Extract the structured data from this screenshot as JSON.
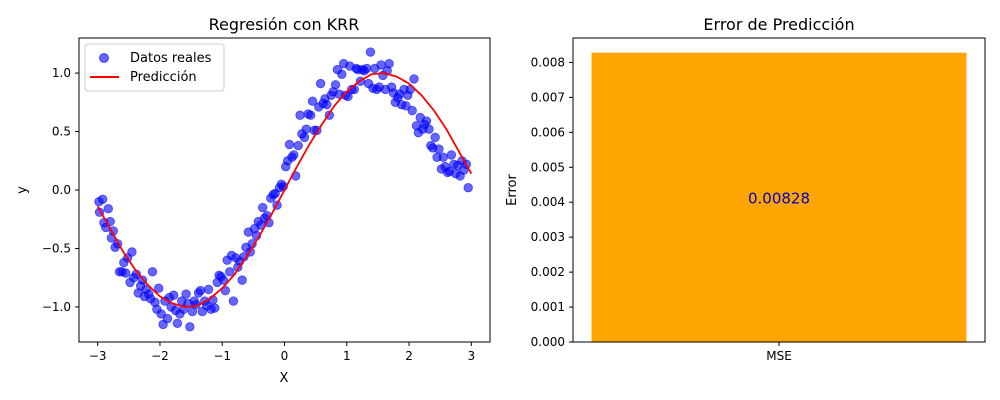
{
  "chart_data": [
    {
      "type": "scatter",
      "title": "Regresión con KRR",
      "xlabel": "X",
      "ylabel": "y",
      "xlim": [
        -3.3,
        3.3
      ],
      "ylim": [
        -1.3,
        1.3
      ],
      "xticks": [
        -3,
        -2,
        -1,
        0,
        1,
        2,
        3
      ],
      "xtick_labels": [
        "−3",
        "−2",
        "−1",
        "0",
        "1",
        "2",
        "3"
      ],
      "yticks": [
        -1.0,
        -0.5,
        0.0,
        0.5,
        1.0
      ],
      "ytick_labels": [
        "−1.0",
        "−0.5",
        "0.0",
        "0.5",
        "1.0"
      ],
      "legend_position": "top-left",
      "grid": false,
      "series": [
        {
          "name": "Datos reales",
          "kind": "scatter",
          "color": "#0000ff",
          "alpha": 0.6,
          "points": [
            [
              -2.98,
              -0.1
            ],
            [
              -2.97,
              -0.19
            ],
            [
              -2.92,
              -0.08
            ],
            [
              -2.9,
              -0.28
            ],
            [
              -2.87,
              -0.32
            ],
            [
              -2.83,
              -0.16
            ],
            [
              -2.8,
              -0.27
            ],
            [
              -2.78,
              -0.41
            ],
            [
              -2.75,
              -0.35
            ],
            [
              -2.72,
              -0.49
            ],
            [
              -2.68,
              -0.46
            ],
            [
              -2.65,
              -0.7
            ],
            [
              -2.61,
              -0.7
            ],
            [
              -2.58,
              -0.62
            ],
            [
              -2.55,
              -0.71
            ],
            [
              -2.52,
              -0.58
            ],
            [
              -2.48,
              -0.79
            ],
            [
              -2.45,
              -0.53
            ],
            [
              -2.42,
              -0.75
            ],
            [
              -2.38,
              -0.72
            ],
            [
              -2.35,
              -0.88
            ],
            [
              -2.31,
              -0.82
            ],
            [
              -2.28,
              -0.77
            ],
            [
              -2.25,
              -0.91
            ],
            [
              -2.22,
              -0.85
            ],
            [
              -2.18,
              -0.89
            ],
            [
              -2.15,
              -0.93
            ],
            [
              -2.12,
              -0.7
            ],
            [
              -2.08,
              -0.96
            ],
            [
              -2.05,
              -1.02
            ],
            [
              -2.02,
              -0.84
            ],
            [
              -1.98,
              -1.06
            ],
            [
              -1.95,
              -1.15
            ],
            [
              -1.92,
              -0.95
            ],
            [
              -1.88,
              -1.1
            ],
            [
              -1.85,
              -0.92
            ],
            [
              -1.82,
              -1.0
            ],
            [
              -1.78,
              -0.9
            ],
            [
              -1.75,
              -1.03
            ],
            [
              -1.72,
              -1.14
            ],
            [
              -1.68,
              -1.06
            ],
            [
              -1.65,
              -0.95
            ],
            [
              -1.62,
              -1.02
            ],
            [
              -1.58,
              -0.89
            ],
            [
              -1.55,
              -0.97
            ],
            [
              -1.52,
              -1.17
            ],
            [
              -1.48,
              -1.04
            ],
            [
              -1.45,
              -0.95
            ],
            [
              -1.42,
              -0.98
            ],
            [
              -1.38,
              -0.88
            ],
            [
              -1.35,
              -0.86
            ],
            [
              -1.32,
              -1.04
            ],
            [
              -1.28,
              -0.95
            ],
            [
              -1.25,
              -0.99
            ],
            [
              -1.22,
              -0.85
            ],
            [
              -1.18,
              -1.02
            ],
            [
              -1.15,
              -0.94
            ],
            [
              -1.12,
              -1.01
            ],
            [
              -1.08,
              -0.79
            ],
            [
              -1.05,
              -0.73
            ],
            [
              -1.02,
              -0.74
            ],
            [
              -0.98,
              -0.77
            ],
            [
              -0.95,
              -0.86
            ],
            [
              -0.92,
              -0.6
            ],
            [
              -0.88,
              -0.7
            ],
            [
              -0.85,
              -0.56
            ],
            [
              -0.82,
              -0.95
            ],
            [
              -0.78,
              -0.58
            ],
            [
              -0.75,
              -0.66
            ],
            [
              -0.72,
              -0.61
            ],
            [
              -0.68,
              -0.77
            ],
            [
              -0.65,
              -0.57
            ],
            [
              -0.62,
              -0.49
            ],
            [
              -0.58,
              -0.36
            ],
            [
              -0.55,
              -0.53
            ],
            [
              -0.52,
              -0.46
            ],
            [
              -0.48,
              -0.33
            ],
            [
              -0.45,
              -0.39
            ],
            [
              -0.42,
              -0.27
            ],
            [
              -0.38,
              -0.3
            ],
            [
              -0.35,
              -0.15
            ],
            [
              -0.32,
              -0.24
            ],
            [
              -0.28,
              -0.22
            ],
            [
              -0.25,
              -0.28
            ],
            [
              -0.22,
              -0.07
            ],
            [
              -0.18,
              -0.04
            ],
            [
              -0.15,
              -0.03
            ],
            [
              -0.12,
              -0.13
            ],
            [
              -0.08,
              0.02
            ],
            [
              -0.05,
              0.05
            ],
            [
              -0.02,
              0.03
            ],
            [
              0.02,
              0.2
            ],
            [
              0.05,
              0.25
            ],
            [
              0.08,
              0.39
            ],
            [
              0.12,
              0.28
            ],
            [
              0.15,
              0.3
            ],
            [
              0.18,
              0.12
            ],
            [
              0.22,
              0.38
            ],
            [
              0.25,
              0.64
            ],
            [
              0.28,
              0.48
            ],
            [
              0.32,
              0.45
            ],
            [
              0.35,
              0.52
            ],
            [
              0.38,
              0.65
            ],
            [
              0.42,
              0.64
            ],
            [
              0.45,
              0.76
            ],
            [
              0.48,
              0.51
            ],
            [
              0.52,
              0.51
            ],
            [
              0.55,
              0.71
            ],
            [
              0.58,
              0.91
            ],
            [
              0.62,
              0.74
            ],
            [
              0.65,
              0.78
            ],
            [
              0.68,
              0.73
            ],
            [
              0.72,
              0.64
            ],
            [
              0.75,
              0.81
            ],
            [
              0.78,
              0.84
            ],
            [
              0.82,
              0.9
            ],
            [
              0.85,
              1.03
            ],
            [
              0.88,
              0.82
            ],
            [
              0.92,
              0.99
            ],
            [
              0.95,
              1.08
            ],
            [
              0.98,
              0.81
            ],
            [
              1.02,
              0.8
            ],
            [
              1.05,
              1.06
            ],
            [
              1.08,
              0.86
            ],
            [
              1.12,
              0.86
            ],
            [
              1.15,
              1.04
            ],
            [
              1.18,
              1.03
            ],
            [
              1.22,
              0.93
            ],
            [
              1.25,
              1.03
            ],
            [
              1.28,
              1.02
            ],
            [
              1.32,
              1.04
            ],
            [
              1.35,
              0.91
            ],
            [
              1.38,
              1.18
            ],
            [
              1.42,
              0.87
            ],
            [
              1.45,
              1.04
            ],
            [
              1.48,
              0.86
            ],
            [
              1.52,
              0.88
            ],
            [
              1.55,
              1.07
            ],
            [
              1.58,
              0.98
            ],
            [
              1.62,
              0.86
            ],
            [
              1.65,
              1.02
            ],
            [
              1.68,
              1.08
            ],
            [
              1.72,
              0.88
            ],
            [
              1.75,
              0.83
            ],
            [
              1.78,
              0.75
            ],
            [
              1.82,
              0.79
            ],
            [
              1.85,
              0.82
            ],
            [
              1.88,
              0.73
            ],
            [
              1.92,
              0.86
            ],
            [
              1.95,
              0.72
            ],
            [
              1.98,
              0.81
            ],
            [
              2.02,
              0.86
            ],
            [
              2.05,
              0.68
            ],
            [
              2.08,
              0.95
            ],
            [
              2.12,
              0.55
            ],
            [
              2.15,
              0.49
            ],
            [
              2.18,
              0.62
            ],
            [
              2.22,
              0.52
            ],
            [
              2.25,
              0.56
            ],
            [
              2.28,
              0.59
            ],
            [
              2.32,
              0.52
            ],
            [
              2.35,
              0.38
            ],
            [
              2.38,
              0.36
            ],
            [
              2.42,
              0.45
            ],
            [
              2.45,
              0.28
            ],
            [
              2.48,
              0.35
            ],
            [
              2.52,
              0.18
            ],
            [
              2.55,
              0.28
            ],
            [
              2.58,
              0.2
            ],
            [
              2.62,
              0.15
            ],
            [
              2.65,
              0.16
            ],
            [
              2.68,
              0.3
            ],
            [
              2.72,
              0.22
            ],
            [
              2.75,
              0.14
            ],
            [
              2.78,
              0.21
            ],
            [
              2.82,
              0.12
            ],
            [
              2.85,
              0.25
            ],
            [
              2.88,
              0.17
            ],
            [
              2.92,
              0.22
            ],
            [
              2.95,
              0.02
            ]
          ]
        },
        {
          "name": "Predicción",
          "kind": "line",
          "color": "#ff0000",
          "points": [
            [
              -3.0,
              -0.14
            ],
            [
              -2.8,
              -0.33
            ],
            [
              -2.6,
              -0.52
            ],
            [
              -2.4,
              -0.68
            ],
            [
              -2.2,
              -0.81
            ],
            [
              -2.0,
              -0.91
            ],
            [
              -1.8,
              -0.97
            ],
            [
              -1.6,
              -1.0
            ],
            [
              -1.4,
              -0.99
            ],
            [
              -1.2,
              -0.93
            ],
            [
              -1.0,
              -0.84
            ],
            [
              -0.8,
              -0.72
            ],
            [
              -0.6,
              -0.56
            ],
            [
              -0.4,
              -0.39
            ],
            [
              -0.2,
              -0.2
            ],
            [
              0.0,
              0.0
            ],
            [
              0.2,
              0.2
            ],
            [
              0.4,
              0.39
            ],
            [
              0.6,
              0.56
            ],
            [
              0.8,
              0.72
            ],
            [
              1.0,
              0.84
            ],
            [
              1.2,
              0.93
            ],
            [
              1.4,
              0.99
            ],
            [
              1.6,
              1.0
            ],
            [
              1.8,
              0.97
            ],
            [
              2.0,
              0.91
            ],
            [
              2.2,
              0.81
            ],
            [
              2.4,
              0.68
            ],
            [
              2.6,
              0.52
            ],
            [
              2.8,
              0.33
            ],
            [
              3.0,
              0.14
            ]
          ]
        }
      ]
    },
    {
      "type": "bar",
      "title": "Error de Predicción",
      "xlabel": "",
      "ylabel": "Error",
      "categories": [
        "MSE"
      ],
      "values": [
        0.00828
      ],
      "value_labels": [
        "0.00828"
      ],
      "bar_color": "#ffa500",
      "label_color": "#0000cd",
      "ylim": [
        0,
        0.0087
      ],
      "yticks": [
        0,
        0.001,
        0.002,
        0.003,
        0.004,
        0.005,
        0.006,
        0.007,
        0.008
      ],
      "ytick_labels": [
        "0.000",
        "0.001",
        "0.002",
        "0.003",
        "0.004",
        "0.005",
        "0.006",
        "0.007",
        "0.008"
      ],
      "grid": false
    }
  ]
}
